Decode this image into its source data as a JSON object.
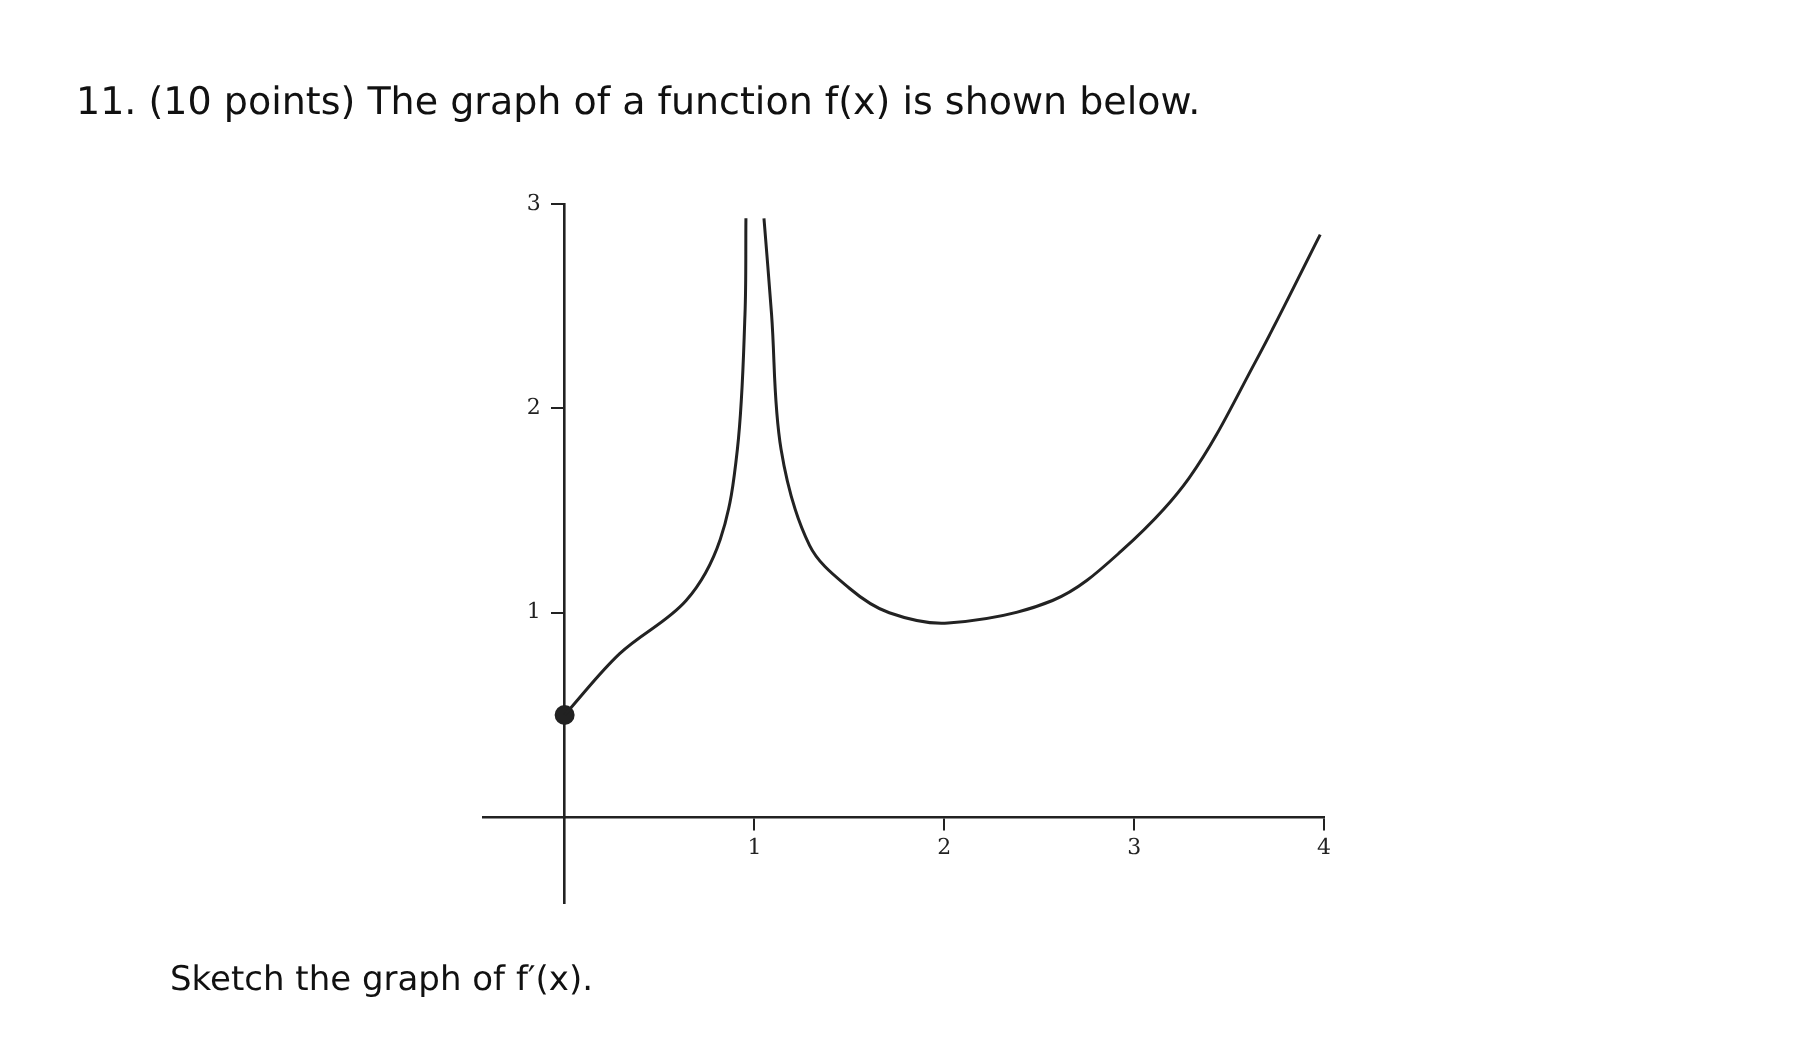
{
  "chart_data": {
    "type": "line",
    "title": "11. (10 points) The graph of a function f(x) is shown below.",
    "annotations": [
      "Sketch the graph of f′(x)."
    ],
    "series": [
      {
        "type": "line",
        "color": "#222222",
        "marker": "none",
        "x": [
          0,
          0.29,
          0.64,
          0.82,
          0.91,
          0.95,
          0.955,
          1,
          1.05,
          1.09,
          1.14,
          1.29,
          1.5,
          1.71,
          2.02,
          2.57,
          2.93,
          3.29,
          3.64,
          3.98
        ],
        "values": [
          0.5,
          0.8,
          1.06,
          1.36,
          1.8,
          2.46,
          2.93,
          null,
          2.93,
          2.46,
          1.8,
          1.33,
          1.12,
          1.0,
          0.95,
          1.06,
          1.3,
          1.66,
          2.23,
          2.85
        ]
      },
      {
        "type": "scatter",
        "color": "#222222",
        "marker": "circle",
        "x": [
          0
        ],
        "values": [
          0.5
        ]
      }
    ],
    "xlim": [
      -0.43,
      4
    ],
    "xticks": [
      1,
      2,
      3,
      4
    ],
    "ylim": [
      -0.42,
      3
    ],
    "yticks": [
      1,
      2,
      3
    ],
    "grid": false,
    "legend": false
  }
}
